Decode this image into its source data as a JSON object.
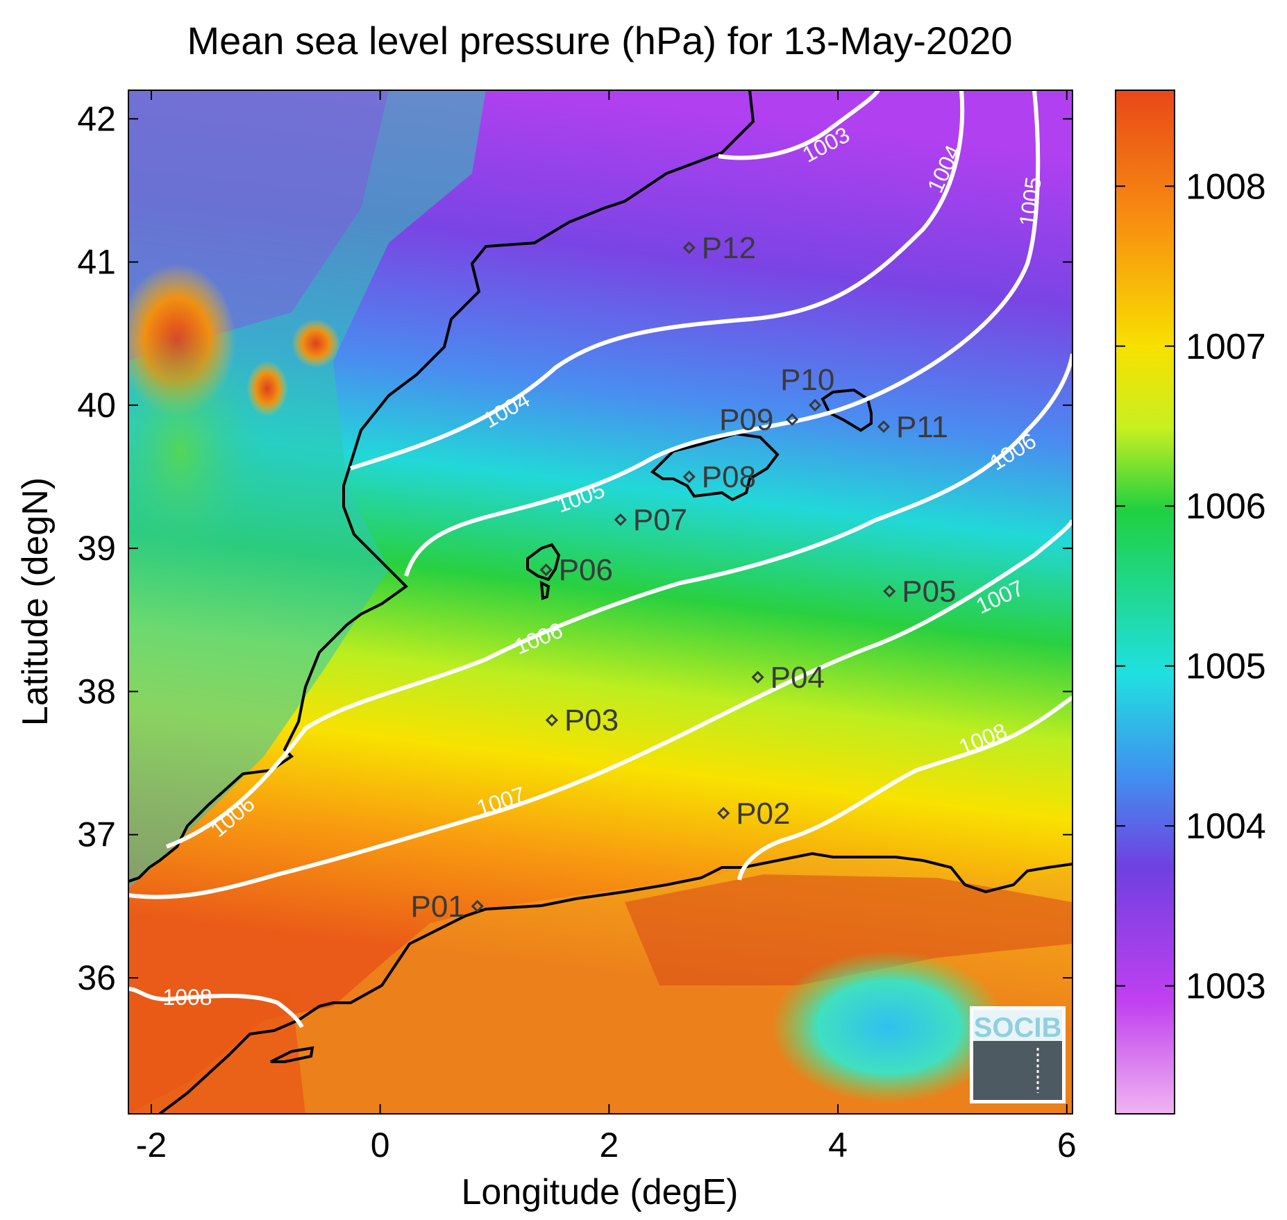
{
  "title": "Mean sea level pressure (hPa) for 13-May-2020",
  "xlabel": "Longitude (degE)",
  "ylabel": "Latitude (degN)",
  "x_ticks": [
    -2,
    0,
    2,
    4,
    6
  ],
  "y_ticks": [
    36,
    37,
    38,
    39,
    40,
    41,
    42
  ],
  "x_range": [
    -2.2,
    6.05
  ],
  "y_range": [
    35.05,
    42.2
  ],
  "colorbar": {
    "ticks": [
      1003,
      1004,
      1005,
      1006,
      1007,
      1008
    ],
    "range": [
      1002.2,
      1008.6
    ],
    "colors": [
      "#f0b4f0",
      "#c040f0",
      "#7040e0",
      "#4090f0",
      "#20e0e0",
      "#20d040",
      "#c8f020",
      "#f8e000",
      "#f89010",
      "#e84818"
    ]
  },
  "stations": [
    {
      "name": "P01",
      "lon": 0.85,
      "lat": 36.5
    },
    {
      "name": "P02",
      "lon": 3.0,
      "lat": 37.15
    },
    {
      "name": "P03",
      "lon": 1.5,
      "lat": 37.8
    },
    {
      "name": "P04",
      "lon": 3.3,
      "lat": 38.1
    },
    {
      "name": "P05",
      "lon": 4.45,
      "lat": 38.7
    },
    {
      "name": "P06",
      "lon": 1.45,
      "lat": 38.85
    },
    {
      "name": "P07",
      "lon": 2.1,
      "lat": 39.2
    },
    {
      "name": "P08",
      "lon": 2.7,
      "lat": 39.5
    },
    {
      "name": "P09",
      "lon": 3.6,
      "lat": 39.9
    },
    {
      "name": "P10",
      "lon": 3.8,
      "lat": 40.0
    },
    {
      "name": "P11",
      "lon": 4.4,
      "lat": 39.85
    },
    {
      "name": "P12",
      "lon": 2.7,
      "lat": 41.1
    }
  ],
  "contours": [
    {
      "level": "1003",
      "label": "1003"
    },
    {
      "level": "1004",
      "label": "1004"
    },
    {
      "level": "1005",
      "label": "1005"
    },
    {
      "level": "1006",
      "label": "1006"
    },
    {
      "level": "1007",
      "label": "1007"
    },
    {
      "level": "1008",
      "label": "1008"
    }
  ],
  "logo": "SOCIB"
}
